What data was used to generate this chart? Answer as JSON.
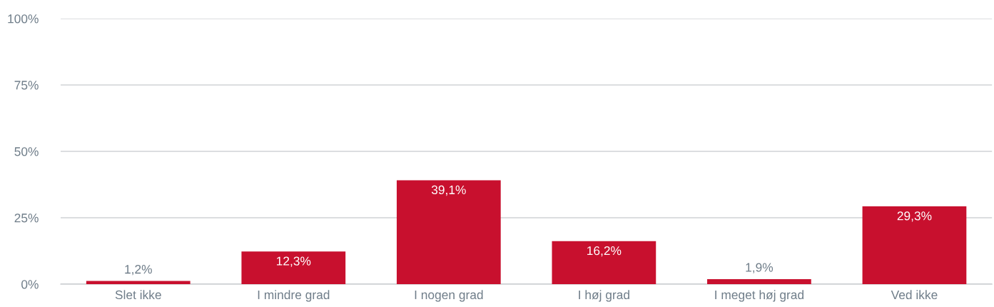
{
  "chart_data": {
    "type": "bar",
    "categories": [
      "Slet ikke",
      "I mindre grad",
      "I nogen grad",
      "I høj grad",
      "I meget høj grad",
      "Ved ikke"
    ],
    "values": [
      1.2,
      12.3,
      39.1,
      16.2,
      1.9,
      29.3
    ],
    "value_labels": [
      "1,2%",
      "12,3%",
      "39,1%",
      "16,2%",
      "1,9%",
      "29,3%"
    ],
    "color": "#c8102e",
    "ylim": [
      0,
      100
    ],
    "yticks": [
      {
        "value": 0,
        "label": "0%"
      },
      {
        "value": 25,
        "label": "25%"
      },
      {
        "value": 50,
        "label": "50%"
      },
      {
        "value": 75,
        "label": "75%"
      },
      {
        "value": 100,
        "label": "100%"
      }
    ],
    "grid": "y",
    "legend": false
  }
}
